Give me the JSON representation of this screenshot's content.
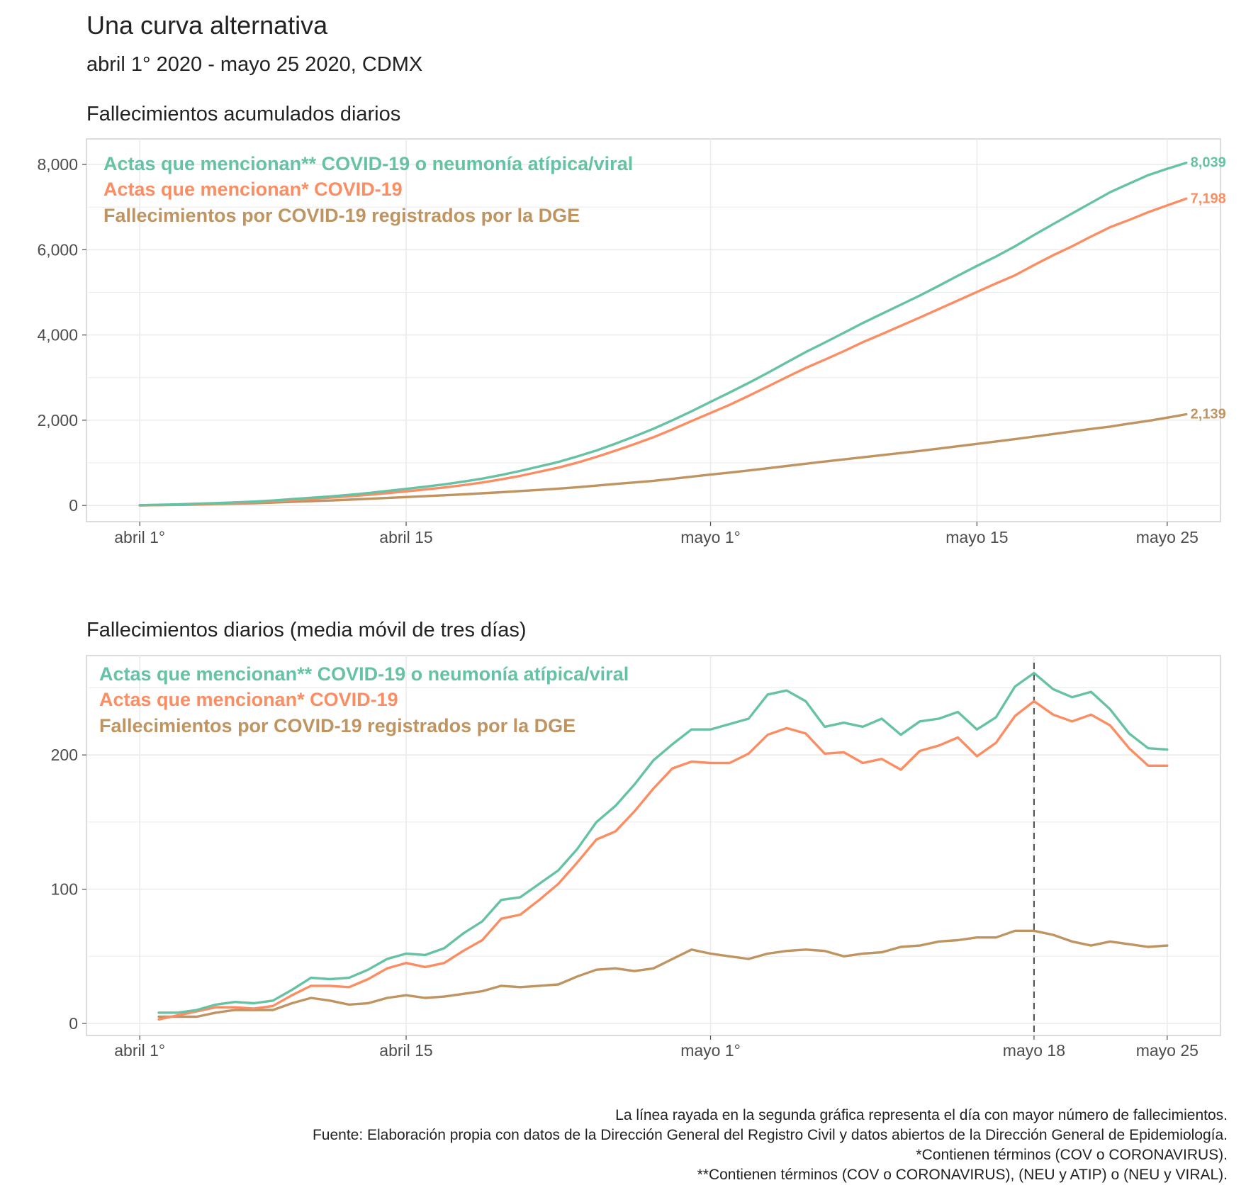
{
  "title": "Una curva alternativa",
  "subtitle": "abril 1° 2020 - mayo 25 2020, CDMX",
  "colors": {
    "green": "#66c2a5",
    "orange": "#fc8d62",
    "brown": "#bf9460",
    "grid": "#ebebeb",
    "border": "#d0d0d0"
  },
  "chart_data": [
    {
      "type": "line",
      "title": "Fallecimientos acumulados diarios",
      "xlabel": "",
      "ylabel": "",
      "x": [
        1,
        2,
        3,
        4,
        5,
        6,
        7,
        8,
        9,
        10,
        11,
        12,
        13,
        14,
        15,
        16,
        17,
        18,
        19,
        20,
        21,
        22,
        23,
        24,
        25,
        26,
        27,
        28,
        29,
        30,
        31,
        32,
        33,
        34,
        35,
        36,
        37,
        38,
        39,
        40,
        41,
        42,
        43,
        44,
        45,
        46,
        47,
        48,
        49,
        50,
        51,
        52,
        53,
        54,
        55,
        56
      ],
      "xlim": [
        -1.8,
        57.8
      ],
      "ylim": [
        -380,
        8600
      ],
      "yticks": [
        0,
        2000,
        4000,
        6000,
        8000
      ],
      "ytick_labels": [
        "0",
        "2,000",
        "4,000",
        "6,000",
        "8,000"
      ],
      "xticks": [
        1,
        15,
        31,
        45,
        55
      ],
      "xtick_labels": [
        "abril 1°",
        "abril 15",
        "mayo 1°",
        "mayo 15",
        "mayo 25"
      ],
      "series": [
        {
          "name": "Actas que mencionan**  COVID-19 o neumonía atípica/viral",
          "color_key": "green",
          "end_label": "8,039",
          "values": [
            5,
            15,
            26,
            40,
            56,
            72,
            90,
            115,
            148,
            180,
            212,
            248,
            290,
            340,
            388,
            440,
            494,
            558,
            630,
            715,
            810,
            915,
            1020,
            1150,
            1290,
            1450,
            1620,
            1800,
            2000,
            2210,
            2430,
            2650,
            2875,
            3110,
            3355,
            3600,
            3820,
            4050,
            4280,
            4495,
            4710,
            4925,
            5155,
            5390,
            5620,
            5840,
            6080,
            6345,
            6600,
            6850,
            7100,
            7350,
            7550,
            7750,
            7900,
            8039
          ]
        },
        {
          "name": "Actas que mencionan* COVID-19",
          "color_key": "orange",
          "end_label": "7,198",
          "values": [
            3,
            10,
            20,
            32,
            45,
            60,
            76,
            98,
            126,
            154,
            182,
            213,
            248,
            288,
            330,
            375,
            422,
            476,
            538,
            612,
            695,
            790,
            888,
            1005,
            1140,
            1285,
            1440,
            1600,
            1785,
            1980,
            2170,
            2360,
            2570,
            2790,
            3010,
            3225,
            3420,
            3620,
            3830,
            4020,
            4215,
            4410,
            4610,
            4810,
            5010,
            5210,
            5400,
            5640,
            5870,
            6080,
            6310,
            6530,
            6700,
            6880,
            7040,
            7198
          ]
        },
        {
          "name": "Fallecimientos por COVID-19 registrados por la DGE",
          "color_key": "brown",
          "end_label": "2,139",
          "values": [
            2,
            7,
            14,
            23,
            33,
            43,
            53,
            68,
            85,
            100,
            115,
            135,
            155,
            176,
            197,
            217,
            238,
            260,
            285,
            310,
            338,
            365,
            395,
            428,
            465,
            505,
            540,
            578,
            625,
            675,
            725,
            770,
            820,
            872,
            925,
            978,
            1030,
            1080,
            1130,
            1180,
            1230,
            1280,
            1335,
            1390,
            1445,
            1500,
            1555,
            1615,
            1675,
            1735,
            1795,
            1850,
            1920,
            1985,
            2060,
            2139
          ]
        }
      ]
    },
    {
      "type": "line",
      "title": "Fallecimientos diarios (media móvil de tres días)",
      "xlabel": "",
      "ylabel": "",
      "x": [
        2,
        3,
        4,
        5,
        6,
        7,
        8,
        9,
        10,
        11,
        12,
        13,
        14,
        15,
        16,
        17,
        18,
        19,
        20,
        21,
        22,
        23,
        24,
        25,
        26,
        27,
        28,
        29,
        30,
        31,
        32,
        33,
        34,
        35,
        36,
        37,
        38,
        39,
        40,
        41,
        42,
        43,
        44,
        45,
        46,
        47,
        48,
        49,
        50,
        51,
        52,
        53,
        54,
        55
      ],
      "xlim": [
        -1.8,
        57.8
      ],
      "ylim": [
        -9,
        274
      ],
      "yticks": [
        0,
        100,
        200
      ],
      "ytick_labels": [
        "0",
        "100",
        "200"
      ],
      "xticks": [
        1,
        15,
        31,
        48,
        55
      ],
      "xtick_labels": [
        "abril 1°",
        "abril 15",
        "mayo 1°",
        "mayo 18",
        "mayo 25"
      ],
      "peak_x": 48,
      "peak_note": "dashed vertical line at mayo 18",
      "series": [
        {
          "name": "Actas que mencionan**  COVID-19 o neumonía atípica/viral",
          "color_key": "green",
          "values": [
            8,
            8,
            10,
            14,
            16,
            15,
            17,
            25,
            34,
            33,
            34,
            40,
            48,
            52,
            51,
            56,
            67,
            76,
            92,
            94,
            104,
            114,
            130,
            150,
            162,
            178,
            196,
            208,
            219,
            219,
            223,
            227,
            245,
            248,
            240,
            221,
            224,
            221,
            227,
            215,
            225,
            227,
            232,
            219,
            228,
            251,
            261,
            249,
            243,
            247,
            234,
            216,
            205,
            204
          ]
        },
        {
          "name": "Actas que mencionan* COVID-19",
          "color_key": "orange",
          "values": [
            3,
            6,
            9,
            12,
            12,
            11,
            13,
            21,
            28,
            28,
            27,
            33,
            41,
            45,
            42,
            45,
            54,
            62,
            78,
            81,
            92,
            104,
            120,
            137,
            143,
            158,
            175,
            190,
            195,
            194,
            194,
            201,
            215,
            220,
            216,
            201,
            202,
            194,
            197,
            189,
            203,
            207,
            213,
            199,
            209,
            229,
            240,
            230,
            225,
            230,
            222,
            205,
            192,
            192
          ]
        },
        {
          "name": "Fallecimientos por COVID-19 registrados por la DGE",
          "color_key": "brown",
          "values": [
            5,
            5,
            5,
            8,
            10,
            10,
            10,
            15,
            19,
            17,
            14,
            15,
            19,
            21,
            19,
            20,
            22,
            24,
            28,
            27,
            28,
            29,
            35,
            40,
            41,
            39,
            41,
            48,
            55,
            52,
            50,
            48,
            52,
            54,
            55,
            54,
            50,
            52,
            53,
            57,
            58,
            61,
            62,
            64,
            64,
            69,
            69,
            66,
            61,
            58,
            61,
            59,
            57,
            58
          ]
        }
      ]
    }
  ],
  "caption": [
    "La línea rayada en la segunda gráfica representa el día con mayor número de fallecimientos.",
    "Fuente: Elaboración propia con datos de la Dirección General del Registro Civil y datos abiertos de la Dirección General de Epidemiología.",
    "*Contienen términos (COV o CORONAVIRUS).",
    "**Contienen términos (COV o CORONAVIRUS), (NEU y ATIP) o (NEU y VIRAL)."
  ]
}
